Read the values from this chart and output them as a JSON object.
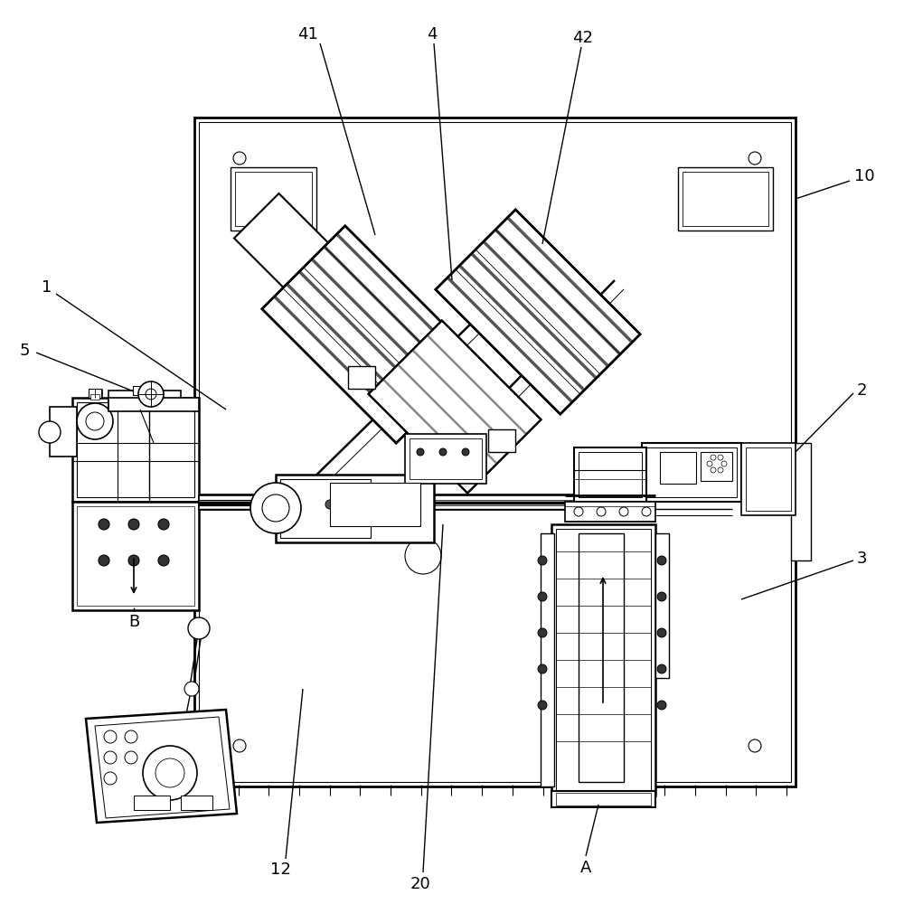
{
  "bg": "#ffffff",
  "lc": "#000000",
  "fig_w": 10.0,
  "fig_h": 10.0,
  "label_fs": 13
}
